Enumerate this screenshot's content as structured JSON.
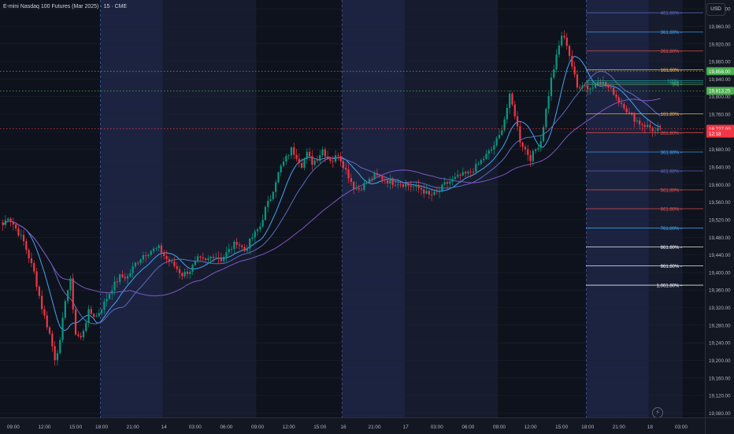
{
  "header": {
    "symbol_title": "E-mini Nasdaq 100 Futures (Mar 2025) · 15 · CME"
  },
  "price_axis": {
    "currency": "USD",
    "ticks": [
      "20,000.00",
      "19,960.00",
      "19,920.00",
      "19,880.00",
      "19,840.00",
      "19,800.00",
      "19,760.00",
      "19,720.00",
      "19,680.00",
      "19,640.00",
      "19,600.00",
      "19,560.00",
      "19,520.00",
      "19,480.00",
      "19,440.00",
      "19,400.00",
      "19,360.00",
      "19,320.00",
      "19,280.00",
      "19,240.00",
      "19,200.00",
      "19,160.00",
      "19,120.00",
      "19,080.00"
    ],
    "tick_values": [
      20000,
      19960,
      19920,
      19880,
      19840,
      19800,
      19760,
      19720,
      19680,
      19640,
      19600,
      19560,
      19520,
      19480,
      19440,
      19400,
      19360,
      19320,
      19280,
      19240,
      19200,
      19160,
      19120,
      19080
    ],
    "labels": [
      {
        "text": "19,858.00",
        "value": 19858,
        "color": "#4caf50"
      },
      {
        "text": "19,813.25",
        "value": 19813.25,
        "color": "#4caf50"
      },
      {
        "text": "19,727.00",
        "value": 19727,
        "color": "#f23645"
      },
      {
        "text": "12:18",
        "value": 19716,
        "color": "#f23645"
      }
    ]
  },
  "time_axis": {
    "labels": [
      {
        "text": "09:00",
        "bar": 4
      },
      {
        "text": "12:00",
        "bar": 16
      },
      {
        "text": "15:00",
        "bar": 28
      },
      {
        "text": "18:00",
        "bar": 38
      },
      {
        "text": "21:00",
        "bar": 50
      },
      {
        "text": "14",
        "bar": 62
      },
      {
        "text": "03:00",
        "bar": 74
      },
      {
        "text": "06:00",
        "bar": 86
      },
      {
        "text": "09:00",
        "bar": 98
      },
      {
        "text": "12:00",
        "bar": 110
      },
      {
        "text": "15:00",
        "bar": 122
      },
      {
        "text": "16",
        "bar": 131
      },
      {
        "text": "21:00",
        "bar": 143
      },
      {
        "text": "17",
        "bar": 155
      },
      {
        "text": "03:00",
        "bar": 167
      },
      {
        "text": "06:00",
        "bar": 179
      },
      {
        "text": "09:00",
        "bar": 191
      },
      {
        "text": "12:00",
        "bar": 203
      },
      {
        "text": "15:00",
        "bar": 215
      },
      {
        "text": "18:00",
        "bar": 225
      },
      {
        "text": "21:00",
        "bar": 237
      },
      {
        "text": "18",
        "bar": 249
      },
      {
        "text": "03:00",
        "bar": 261
      }
    ]
  },
  "fib_levels": [
    {
      "label": "461.80%",
      "value": 19991,
      "color": "#5c6bc0"
    },
    {
      "label": "361.80%",
      "value": 19947,
      "color": "#42a5f5"
    },
    {
      "label": "261.80%",
      "value": 19904,
      "color": "#ef5350"
    },
    {
      "label": "161.80%",
      "value": 19861,
      "color": "#ffb74d"
    },
    {
      "label": "100%",
      "value": 19836,
      "color": "#26a69a"
    },
    {
      "label": "50%",
      "value": 19832,
      "color": "#26a69a"
    },
    {
      "label": "0%",
      "value": 19828,
      "color": "#66bb6a"
    },
    {
      "label": "161.80%",
      "value": 19761,
      "color": "#ffb74d"
    },
    {
      "label": "261.80%",
      "value": 19718,
      "color": "#ef5350"
    },
    {
      "label": "361.80%",
      "value": 19674,
      "color": "#42a5f5"
    },
    {
      "label": "461.80%",
      "value": 19631,
      "color": "#5c6bc0"
    },
    {
      "label": "561.80%",
      "value": 19588,
      "color": "#ef5350"
    },
    {
      "label": "661.80%",
      "value": 19545,
      "color": "#ef5350"
    },
    {
      "label": "761.80%",
      "value": 19501,
      "color": "#42a5f5"
    },
    {
      "label": "861.80%",
      "value": 19458,
      "color": "#ffffff"
    },
    {
      "label": "961.80%",
      "value": 19415,
      "color": "#ffffff"
    },
    {
      "label": "1,061.80%",
      "value": 19371,
      "color": "#ffffff"
    }
  ],
  "chart_data": {
    "type": "candlestick",
    "ylim": [
      19070,
      20020
    ],
    "anchors": [
      [
        0,
        19508
      ],
      [
        2,
        19528
      ],
      [
        4,
        19510
      ],
      [
        8,
        19470
      ],
      [
        12,
        19400
      ],
      [
        15,
        19320
      ],
      [
        18,
        19260
      ],
      [
        20,
        19205
      ],
      [
        22,
        19240
      ],
      [
        24,
        19340
      ],
      [
        26,
        19380
      ],
      [
        28,
        19260
      ],
      [
        30,
        19250
      ],
      [
        33,
        19310
      ],
      [
        36,
        19300
      ],
      [
        39,
        19330
      ],
      [
        42,
        19365
      ],
      [
        45,
        19390
      ],
      [
        48,
        19390
      ],
      [
        51,
        19420
      ],
      [
        54,
        19440
      ],
      [
        57,
        19450
      ],
      [
        60,
        19455
      ],
      [
        63,
        19430
      ],
      [
        66,
        19415
      ],
      [
        69,
        19395
      ],
      [
        72,
        19405
      ],
      [
        75,
        19430
      ],
      [
        78,
        19425
      ],
      [
        81,
        19440
      ],
      [
        84,
        19430
      ],
      [
        87,
        19450
      ],
      [
        90,
        19470
      ],
      [
        93,
        19450
      ],
      [
        96,
        19480
      ],
      [
        99,
        19505
      ],
      [
        101,
        19545
      ],
      [
        103,
        19570
      ],
      [
        105,
        19610
      ],
      [
        107,
        19640
      ],
      [
        109,
        19660
      ],
      [
        111,
        19680
      ],
      [
        113,
        19665
      ],
      [
        115,
        19645
      ],
      [
        117,
        19670
      ],
      [
        119,
        19650
      ],
      [
        121,
        19660
      ],
      [
        123,
        19680
      ],
      [
        125,
        19660
      ],
      [
        127,
        19655
      ],
      [
        129,
        19670
      ],
      [
        131,
        19645
      ],
      [
        133,
        19620
      ],
      [
        135,
        19595
      ],
      [
        137,
        19590
      ],
      [
        139,
        19600
      ],
      [
        141,
        19610
      ],
      [
        143,
        19620
      ],
      [
        146,
        19615
      ],
      [
        149,
        19605
      ],
      [
        152,
        19605
      ],
      [
        155,
        19600
      ],
      [
        158,
        19595
      ],
      [
        161,
        19590
      ],
      [
        164,
        19575
      ],
      [
        167,
        19580
      ],
      [
        170,
        19600
      ],
      [
        173,
        19610
      ],
      [
        176,
        19620
      ],
      [
        179,
        19625
      ],
      [
        182,
        19640
      ],
      [
        185,
        19660
      ],
      [
        188,
        19680
      ],
      [
        191,
        19710
      ],
      [
        193,
        19750
      ],
      [
        195,
        19800
      ],
      [
        197,
        19760
      ],
      [
        199,
        19700
      ],
      [
        201,
        19680
      ],
      [
        203,
        19660
      ],
      [
        205,
        19680
      ],
      [
        207,
        19700
      ],
      [
        209,
        19770
      ],
      [
        211,
        19840
      ],
      [
        213,
        19890
      ],
      [
        215,
        19940
      ],
      [
        217,
        19920
      ],
      [
        219,
        19870
      ],
      [
        221,
        19820
      ],
      [
        223,
        19830
      ],
      [
        225,
        19820
      ],
      [
        227,
        19820
      ],
      [
        229,
        19840
      ],
      [
        231,
        19830
      ],
      [
        233,
        19820
      ],
      [
        235,
        19810
      ],
      [
        237,
        19790
      ],
      [
        239,
        19780
      ],
      [
        241,
        19760
      ],
      [
        243,
        19750
      ],
      [
        245,
        19740
      ],
      [
        247,
        19735
      ],
      [
        249,
        19730
      ],
      [
        251,
        19720
      ],
      [
        253,
        19727
      ]
    ],
    "moving_averages": [
      {
        "period": 10,
        "color": "#42a5f5"
      },
      {
        "period": 20,
        "color": "#5c6bc0"
      },
      {
        "period": 50,
        "color": "#7e57c2"
      }
    ],
    "last_price": 19727,
    "up_color": "#089981",
    "down_color": "#f23645"
  },
  "horizontal_lines": [
    {
      "value": 19858,
      "color": "#4caf50",
      "style": "dotted"
    },
    {
      "value": 19813.25,
      "color": "#4caf50",
      "style": "dotted"
    },
    {
      "value": 19727,
      "color": "#f23645",
      "style": "dotted"
    }
  ],
  "session_breaks": [
    38,
    131,
    225
  ],
  "session_shading": [
    {
      "from": 38,
      "to": 62,
      "color": "#1c2340"
    },
    {
      "from": 62,
      "to": 98,
      "color": "#161c2e"
    },
    {
      "from": 131,
      "to": 155,
      "color": "#1c2340"
    },
    {
      "from": 155,
      "to": 191,
      "color": "#161c2e"
    },
    {
      "from": 225,
      "to": 249,
      "color": "#1c2340"
    },
    {
      "from": 249,
      "to": 262,
      "color": "#161c2e"
    }
  ],
  "icons": {
    "lightning": "lightning-icon"
  }
}
